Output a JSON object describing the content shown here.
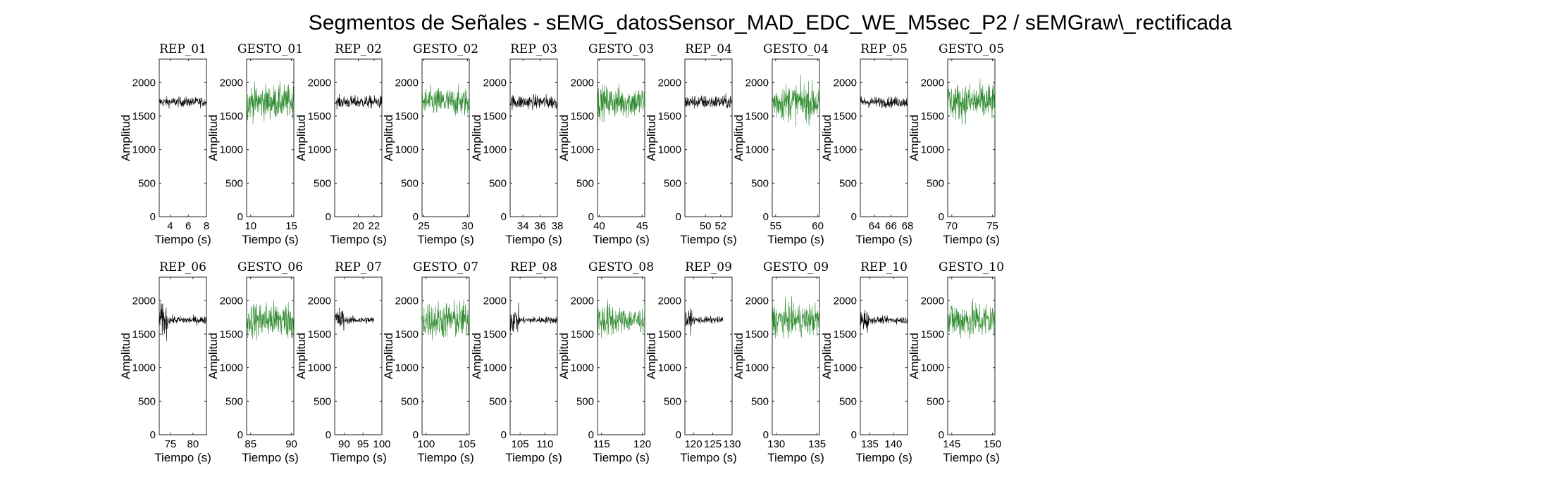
{
  "figure": {
    "title": "Segmentos de Señales - sEMG_datosSensor_MAD_EDC_WE_M5sec_P2 / sEMGraw\\_rectificada"
  },
  "colors": {
    "rep": "#000000",
    "gesto": "#2e8b2e"
  },
  "chart_data": [
    {
      "type": "line",
      "title": "REP_01",
      "xlabel": "Tiempo (s)",
      "ylabel": "Amplitud",
      "xlim": [
        2.8,
        8.0
      ],
      "ylim": [
        0,
        2350
      ],
      "xticks": [
        4,
        6,
        8
      ],
      "yticks": [
        0,
        500,
        1000,
        1500,
        2000
      ],
      "series": [
        {
          "name": "",
          "color": "#000000",
          "x": [
            2.8,
            8.0
          ],
          "baseline": 1710,
          "amplitude": 110,
          "segments": [
            {
              "x": [
                2.8,
                8.0
              ],
              "amp": 110
            }
          ]
        }
      ]
    },
    {
      "type": "line",
      "title": "GESTO_01",
      "xlabel": "Tiempo (s)",
      "ylabel": "Amplitud",
      "xlim": [
        9.5,
        15.3
      ],
      "ylim": [
        0,
        2350
      ],
      "xticks": [
        10,
        15
      ],
      "yticks": [
        0,
        500,
        1000,
        1500,
        2000
      ],
      "series": [
        {
          "name": "",
          "color": "#2e8b2e",
          "x": [
            9.5,
            15.3
          ],
          "baseline": 1710,
          "amplitude": 380,
          "segments": [
            {
              "x": [
                9.5,
                15.3
              ],
              "amp": 380
            }
          ]
        }
      ]
    },
    {
      "type": "line",
      "title": "REP_02",
      "xlabel": "Tiempo (s)",
      "ylabel": "Amplitud",
      "xlim": [
        17.0,
        23.0
      ],
      "ylim": [
        0,
        2350
      ],
      "xticks": [
        20,
        22
      ],
      "yticks": [
        0,
        500,
        1000,
        1500,
        2000
      ],
      "series": [
        {
          "name": "",
          "color": "#000000",
          "x": [
            17.0,
            23.0
          ],
          "baseline": 1710,
          "amplitude": 140,
          "segments": [
            {
              "x": [
                17.0,
                23.0
              ],
              "amp": 140
            }
          ]
        }
      ]
    },
    {
      "type": "line",
      "title": "GESTO_02",
      "xlabel": "Tiempo (s)",
      "ylabel": "Amplitud",
      "xlim": [
        24.8,
        30.2
      ],
      "ylim": [
        0,
        2350
      ],
      "xticks": [
        25,
        30
      ],
      "yticks": [
        0,
        500,
        1000,
        1500,
        2000
      ],
      "series": [
        {
          "name": "",
          "color": "#2e8b2e",
          "x": [
            24.8,
            30.2
          ],
          "baseline": 1710,
          "amplitude": 320,
          "segments": [
            {
              "x": [
                24.8,
                30.2
              ],
              "amp": 320
            }
          ]
        }
      ]
    },
    {
      "type": "line",
      "title": "REP_03",
      "xlabel": "Tiempo (s)",
      "ylabel": "Amplitud",
      "xlim": [
        32.5,
        38.0
      ],
      "ylim": [
        0,
        2350
      ],
      "xticks": [
        34,
        36,
        38
      ],
      "yticks": [
        0,
        500,
        1000,
        1500,
        2000
      ],
      "series": [
        {
          "name": "",
          "color": "#000000",
          "x": [
            32.5,
            38.0
          ],
          "baseline": 1710,
          "amplitude": 160,
          "segments": [
            {
              "x": [
                32.5,
                38.0
              ],
              "amp": 160
            }
          ]
        }
      ]
    },
    {
      "type": "line",
      "title": "GESTO_03",
      "xlabel": "Tiempo (s)",
      "ylabel": "Amplitud",
      "xlim": [
        39.8,
        45.3
      ],
      "ylim": [
        0,
        2350
      ],
      "xticks": [
        40,
        45
      ],
      "yticks": [
        0,
        500,
        1000,
        1500,
        2000
      ],
      "series": [
        {
          "name": "",
          "color": "#2e8b2e",
          "x": [
            39.8,
            45.3
          ],
          "baseline": 1710,
          "amplitude": 360,
          "segments": [
            {
              "x": [
                39.8,
                45.3
              ],
              "amp": 360
            }
          ]
        }
      ]
    },
    {
      "type": "line",
      "title": "REP_04",
      "xlabel": "Tiempo (s)",
      "ylabel": "Amplitud",
      "xlim": [
        47.3,
        53.5
      ],
      "ylim": [
        0,
        2350
      ],
      "xticks": [
        50,
        52
      ],
      "yticks": [
        0,
        500,
        1000,
        1500,
        2000
      ],
      "series": [
        {
          "name": "",
          "color": "#000000",
          "x": [
            47.3,
            53.5
          ],
          "baseline": 1710,
          "amplitude": 150,
          "segments": [
            {
              "x": [
                47.3,
                53.5
              ],
              "amp": 150
            }
          ]
        }
      ]
    },
    {
      "type": "line",
      "title": "GESTO_04",
      "xlabel": "Tiempo (s)",
      "ylabel": "Amplitud",
      "xlim": [
        54.6,
        60.2
      ],
      "ylim": [
        0,
        2350
      ],
      "xticks": [
        55,
        60
      ],
      "yticks": [
        0,
        500,
        1000,
        1500,
        2000
      ],
      "series": [
        {
          "name": "",
          "color": "#2e8b2e",
          "x": [
            54.6,
            60.2
          ],
          "baseline": 1710,
          "amplitude": 420,
          "segments": [
            {
              "x": [
                54.6,
                60.2
              ],
              "amp": 420
            }
          ]
        }
      ]
    },
    {
      "type": "line",
      "title": "REP_05",
      "xlabel": "Tiempo (s)",
      "ylabel": "Amplitud",
      "xlim": [
        62.3,
        68.0
      ],
      "ylim": [
        0,
        2350
      ],
      "xticks": [
        64,
        66,
        68
      ],
      "yticks": [
        0,
        500,
        1000,
        1500,
        2000
      ],
      "series": [
        {
          "name": "",
          "color": "#000000",
          "x": [
            62.3,
            68.0
          ],
          "baseline": 1710,
          "amplitude": 120,
          "segments": [
            {
              "x": [
                62.3,
                68.0
              ],
              "amp": 120
            }
          ]
        }
      ]
    },
    {
      "type": "line",
      "title": "GESTO_05",
      "xlabel": "Tiempo (s)",
      "ylabel": "Amplitud",
      "xlim": [
        69.5,
        75.3
      ],
      "ylim": [
        0,
        2350
      ],
      "xticks": [
        70,
        75
      ],
      "yticks": [
        0,
        500,
        1000,
        1500,
        2000
      ],
      "series": [
        {
          "name": "",
          "color": "#2e8b2e",
          "x": [
            69.5,
            75.3
          ],
          "baseline": 1710,
          "amplitude": 420,
          "segments": [
            {
              "x": [
                69.5,
                75.3
              ],
              "amp": 420
            }
          ]
        }
      ]
    },
    {
      "type": "line",
      "title": "REP_06",
      "xlabel": "Tiempo (s)",
      "ylabel": "Amplitud",
      "xlim": [
        72.5,
        83.0
      ],
      "ylim": [
        0,
        2350
      ],
      "xticks": [
        75,
        80
      ],
      "yticks": [
        0,
        500,
        1000,
        1500,
        2000
      ],
      "series": [
        {
          "name": "",
          "color": "#000000",
          "x": [
            72.5,
            83.0
          ],
          "baseline": 1710,
          "amplitude": 100,
          "segments": [
            {
              "x": [
                72.5,
                74.5
              ],
              "amp": 380
            },
            {
              "x": [
                74.5,
                83.0
              ],
              "amp": 90
            }
          ]
        }
      ]
    },
    {
      "type": "line",
      "title": "GESTO_06",
      "xlabel": "Tiempo (s)",
      "ylabel": "Amplitud",
      "xlim": [
        84.5,
        90.3
      ],
      "ylim": [
        0,
        2350
      ],
      "xticks": [
        85,
        90
      ],
      "yticks": [
        0,
        500,
        1000,
        1500,
        2000
      ],
      "series": [
        {
          "name": "",
          "color": "#2e8b2e",
          "x": [
            84.5,
            90.3
          ],
          "baseline": 1710,
          "amplitude": 420,
          "segments": [
            {
              "x": [
                84.5,
                90.3
              ],
              "amp": 420
            }
          ]
        }
      ]
    },
    {
      "type": "line",
      "title": "REP_07",
      "xlabel": "Tiempo (s)",
      "ylabel": "Amplitud",
      "xlim": [
        87.5,
        100.0
      ],
      "ylim": [
        0,
        2350
      ],
      "xticks": [
        90,
        95,
        100
      ],
      "yticks": [
        0,
        500,
        1000,
        1500,
        2000
      ],
      "series": [
        {
          "name": "",
          "color": "#000000",
          "x": [
            87.5,
            98.0
          ],
          "baseline": 1710,
          "amplitude": 90,
          "segments": [
            {
              "x": [
                87.5,
                90.0
              ],
              "amp": 300
            },
            {
              "x": [
                90.0,
                98.0
              ],
              "amp": 80
            }
          ]
        }
      ]
    },
    {
      "type": "line",
      "title": "GESTO_07",
      "xlabel": "Tiempo (s)",
      "ylabel": "Amplitud",
      "xlim": [
        99.5,
        105.3
      ],
      "ylim": [
        0,
        2350
      ],
      "xticks": [
        100,
        105
      ],
      "yticks": [
        0,
        500,
        1000,
        1500,
        2000
      ],
      "series": [
        {
          "name": "",
          "color": "#2e8b2e",
          "x": [
            99.5,
            105.3
          ],
          "baseline": 1710,
          "amplitude": 420,
          "segments": [
            {
              "x": [
                99.5,
                105.3
              ],
              "amp": 420
            }
          ]
        }
      ]
    },
    {
      "type": "line",
      "title": "REP_08",
      "xlabel": "Tiempo (s)",
      "ylabel": "Amplitud",
      "xlim": [
        103.0,
        112.5
      ],
      "ylim": [
        0,
        2350
      ],
      "xticks": [
        105,
        110
      ],
      "yticks": [
        0,
        500,
        1000,
        1500,
        2000
      ],
      "series": [
        {
          "name": "",
          "color": "#000000",
          "x": [
            103.0,
            112.5
          ],
          "baseline": 1710,
          "amplitude": 90,
          "segments": [
            {
              "x": [
                103.0,
                104.8
              ],
              "amp": 300
            },
            {
              "x": [
                104.8,
                112.5
              ],
              "amp": 80
            }
          ]
        }
      ]
    },
    {
      "type": "line",
      "title": "GESTO_08",
      "xlabel": "Tiempo (s)",
      "ylabel": "Amplitud",
      "xlim": [
        114.5,
        120.3
      ],
      "ylim": [
        0,
        2350
      ],
      "xticks": [
        115,
        120
      ],
      "yticks": [
        0,
        500,
        1000,
        1500,
        2000
      ],
      "series": [
        {
          "name": "",
          "color": "#2e8b2e",
          "x": [
            114.5,
            120.3
          ],
          "baseline": 1710,
          "amplitude": 420,
          "segments": [
            {
              "x": [
                114.5,
                116.5
              ],
              "amp": 420
            },
            {
              "x": [
                116.5,
                120.3
              ],
              "amp": 280
            }
          ]
        }
      ]
    },
    {
      "type": "line",
      "title": "REP_09",
      "xlabel": "Tiempo (s)",
      "ylabel": "Amplitud",
      "xlim": [
        117.8,
        130.0
      ],
      "ylim": [
        0,
        2350
      ],
      "xticks": [
        120,
        125,
        130
      ],
      "yticks": [
        0,
        500,
        1000,
        1500,
        2000
      ],
      "series": [
        {
          "name": "",
          "color": "#000000",
          "x": [
            117.8,
            127.8
          ],
          "baseline": 1710,
          "amplitude": 90,
          "segments": [
            {
              "x": [
                117.8,
                119.6
              ],
              "amp": 230
            },
            {
              "x": [
                119.6,
                127.8
              ],
              "amp": 80
            }
          ]
        }
      ]
    },
    {
      "type": "line",
      "title": "GESTO_09",
      "xlabel": "Tiempo (s)",
      "ylabel": "Amplitud",
      "xlim": [
        129.5,
        135.3
      ],
      "ylim": [
        0,
        2350
      ],
      "xticks": [
        130,
        135
      ],
      "yticks": [
        0,
        500,
        1000,
        1500,
        2000
      ],
      "series": [
        {
          "name": "",
          "color": "#2e8b2e",
          "x": [
            129.5,
            135.3
          ],
          "baseline": 1710,
          "amplitude": 360,
          "segments": [
            {
              "x": [
                129.5,
                135.3
              ],
              "amp": 360
            }
          ]
        }
      ]
    },
    {
      "type": "line",
      "title": "REP_10",
      "xlabel": "Tiempo (s)",
      "ylabel": "Amplitud",
      "xlim": [
        133.0,
        143.0
      ],
      "ylim": [
        0,
        2350
      ],
      "xticks": [
        135,
        140
      ],
      "yticks": [
        0,
        500,
        1000,
        1500,
        2000
      ],
      "series": [
        {
          "name": "",
          "color": "#000000",
          "x": [
            133.0,
            143.0
          ],
          "baseline": 1710,
          "amplitude": 90,
          "segments": [
            {
              "x": [
                133.0,
                134.8
              ],
              "amp": 260
            },
            {
              "x": [
                134.8,
                143.0
              ],
              "amp": 80
            }
          ]
        }
      ]
    },
    {
      "type": "line",
      "title": "GESTO_10",
      "xlabel": "Tiempo (s)",
      "ylabel": "Amplitud",
      "xlim": [
        144.5,
        150.3
      ],
      "ylim": [
        0,
        2350
      ],
      "xticks": [
        145,
        150
      ],
      "yticks": [
        0,
        500,
        1000,
        1500,
        2000
      ],
      "series": [
        {
          "name": "",
          "color": "#2e8b2e",
          "x": [
            144.5,
            150.3
          ],
          "baseline": 1710,
          "amplitude": 420,
          "segments": [
            {
              "x": [
                144.5,
                150.3
              ],
              "amp": 420
            }
          ]
        }
      ]
    }
  ]
}
